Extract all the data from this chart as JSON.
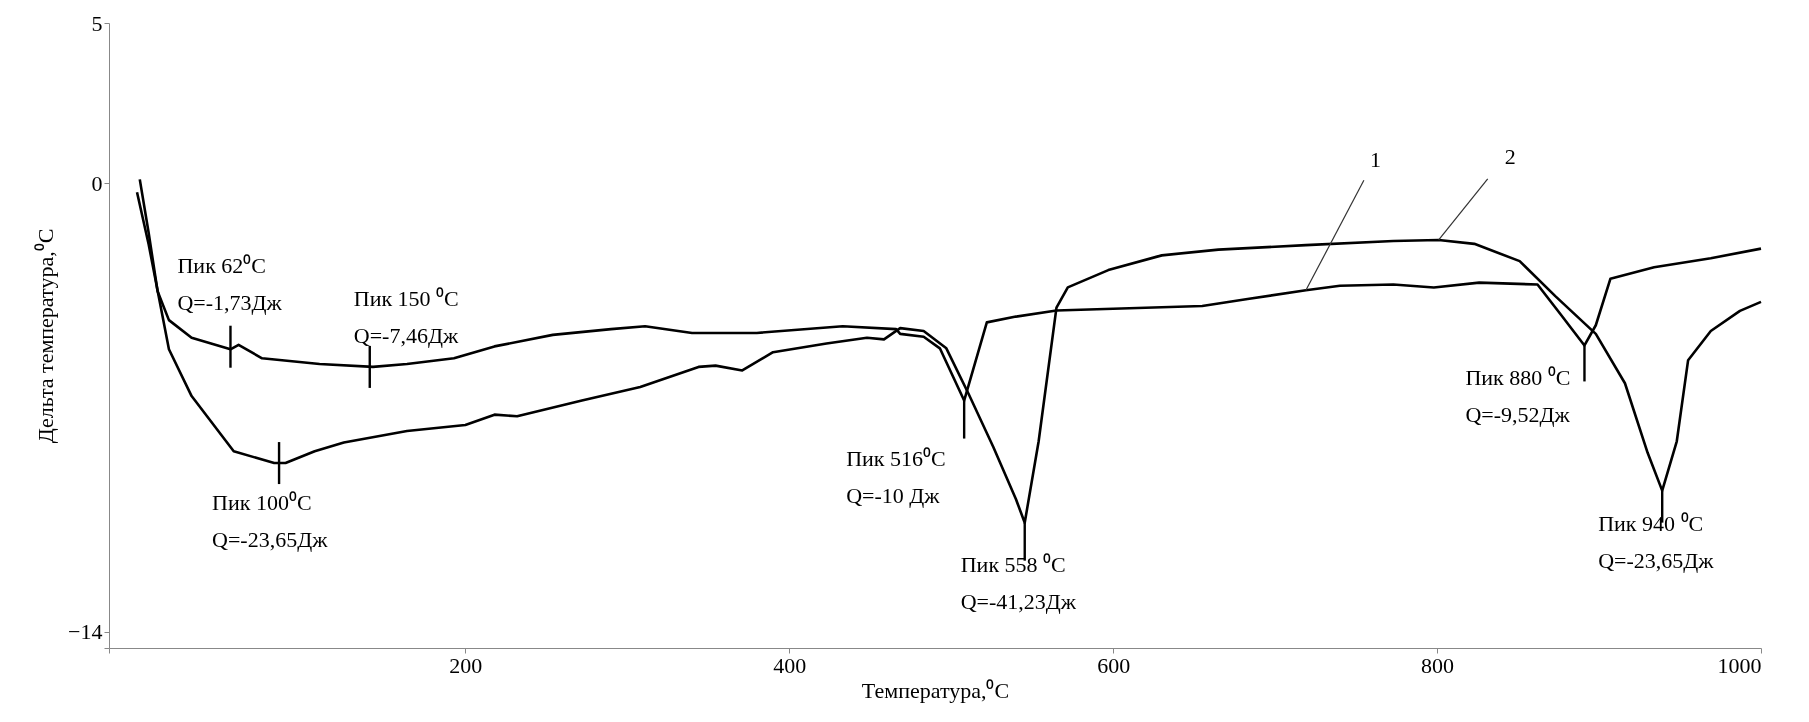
{
  "chart_data": {
    "type": "line",
    "xlabel": "Температура,⁰C",
    "ylabel": "Дельта температура,⁰C",
    "xlim": [
      -20,
      1000
    ],
    "ylim": [
      -14.5,
      5
    ],
    "xticks": [
      {
        "value": -20,
        "label": null
      },
      200,
      400,
      600,
      800,
      1000
    ],
    "yticks": [
      5,
      0,
      -14,
      {
        "value": -14.5,
        "label": null
      }
    ],
    "grid": false,
    "series": [
      {
        "color": "#000000",
        "x": [
          -1,
          4.5,
          10,
          17,
          31,
          55,
          60,
          74.5,
          110,
          143,
          164,
          193,
          218,
          254,
          290,
          311,
          340,
          380,
          433,
          466,
          468.5,
          483,
          493,
          508,
          522,
          540,
          565,
          655,
          683,
          719,
          740,
          773,
          798,
          826,
          862,
          876,
          891,
          898,
          907,
          934,
          969,
          1000
        ],
        "values": [
          0.12,
          -1.55,
          -3.37,
          -4.27,
          -4.82,
          -5.18,
          -5.04,
          -5.46,
          -5.64,
          -5.73,
          -5.64,
          -5.46,
          -5.09,
          -4.73,
          -4.55,
          -4.46,
          -4.67,
          -4.67,
          -4.46,
          -4.55,
          -4.7,
          -4.79,
          -5.15,
          -6.78,
          -4.34,
          -4.16,
          -3.97,
          -3.83,
          -3.61,
          -3.34,
          -3.2,
          -3.16,
          -3.25,
          -3.1,
          -3.16,
          -4.07,
          -5.06,
          -4.43,
          -2.98,
          -2.62,
          -2.34,
          -2.04
        ]
      },
      {
        "color": "#000000",
        "x": [
          -2.7,
          4.5,
          17,
          31,
          57,
          82,
          89,
          107,
          125,
          164,
          200,
          218,
          232,
          272,
          308,
          344,
          354.5,
          371,
          390,
          423,
          448,
          458.5,
          468.5,
          483,
          497,
          511,
          526,
          540,
          545.4,
          554,
          565,
          572,
          597,
          630,
          665,
          719,
          773,
          801,
          823,
          851,
          873,
          898,
          916,
          930,
          939,
          948,
          955,
          969,
          987,
          1000
        ],
        "values": [
          -0.28,
          -1.91,
          -5.18,
          -6.64,
          -8.36,
          -8.73,
          -8.73,
          -8.36,
          -8.09,
          -7.73,
          -7.54,
          -7.22,
          -7.27,
          -6.78,
          -6.36,
          -5.73,
          -5.69,
          -5.84,
          -5.27,
          -5,
          -4.82,
          -4.87,
          -4.52,
          -4.61,
          -5.15,
          -6.6,
          -8.23,
          -9.86,
          -10.59,
          -8.05,
          -3.88,
          -3.25,
          -2.71,
          -2.25,
          -2.07,
          -1.93,
          -1.8,
          -1.77,
          -1.89,
          -2.43,
          -3.52,
          -4.7,
          -6.24,
          -8.41,
          -9.59,
          -8.05,
          -5.52,
          -4.61,
          -3.98,
          -3.7
        ]
      }
    ],
    "annotations": [
      {
        "text": "Пик 62⁰C\nQ=-1,73Дж",
        "x": 55,
        "y": -5.1
      },
      {
        "text": "Пик 150 ⁰C\nQ=-7,46Дж",
        "x": 141,
        "y": -5.73
      },
      {
        "text": "Пик 100⁰C\nQ=-23,65Дж",
        "x": 85,
        "y": -8.73
      },
      {
        "text": "Пик 516⁰C\nQ=-10 Дж",
        "x": 508,
        "y": -6.78
      },
      {
        "text": "Пик 558 ⁰C\nQ=-41,23Дж",
        "x": 545.4,
        "y": -10.59
      },
      {
        "text": "Пик 880 ⁰C\nQ=-9,52Дж",
        "x": 891,
        "y": -5.06
      },
      {
        "text": "Пик 940 ⁰C\nQ=-23,65Дж",
        "x": 939,
        "y": -9.59
      },
      {
        "text": "1",
        "x": 719,
        "y": -3.34
      },
      {
        "text": "2",
        "x": 801,
        "y": -1.77
      }
    ]
  }
}
